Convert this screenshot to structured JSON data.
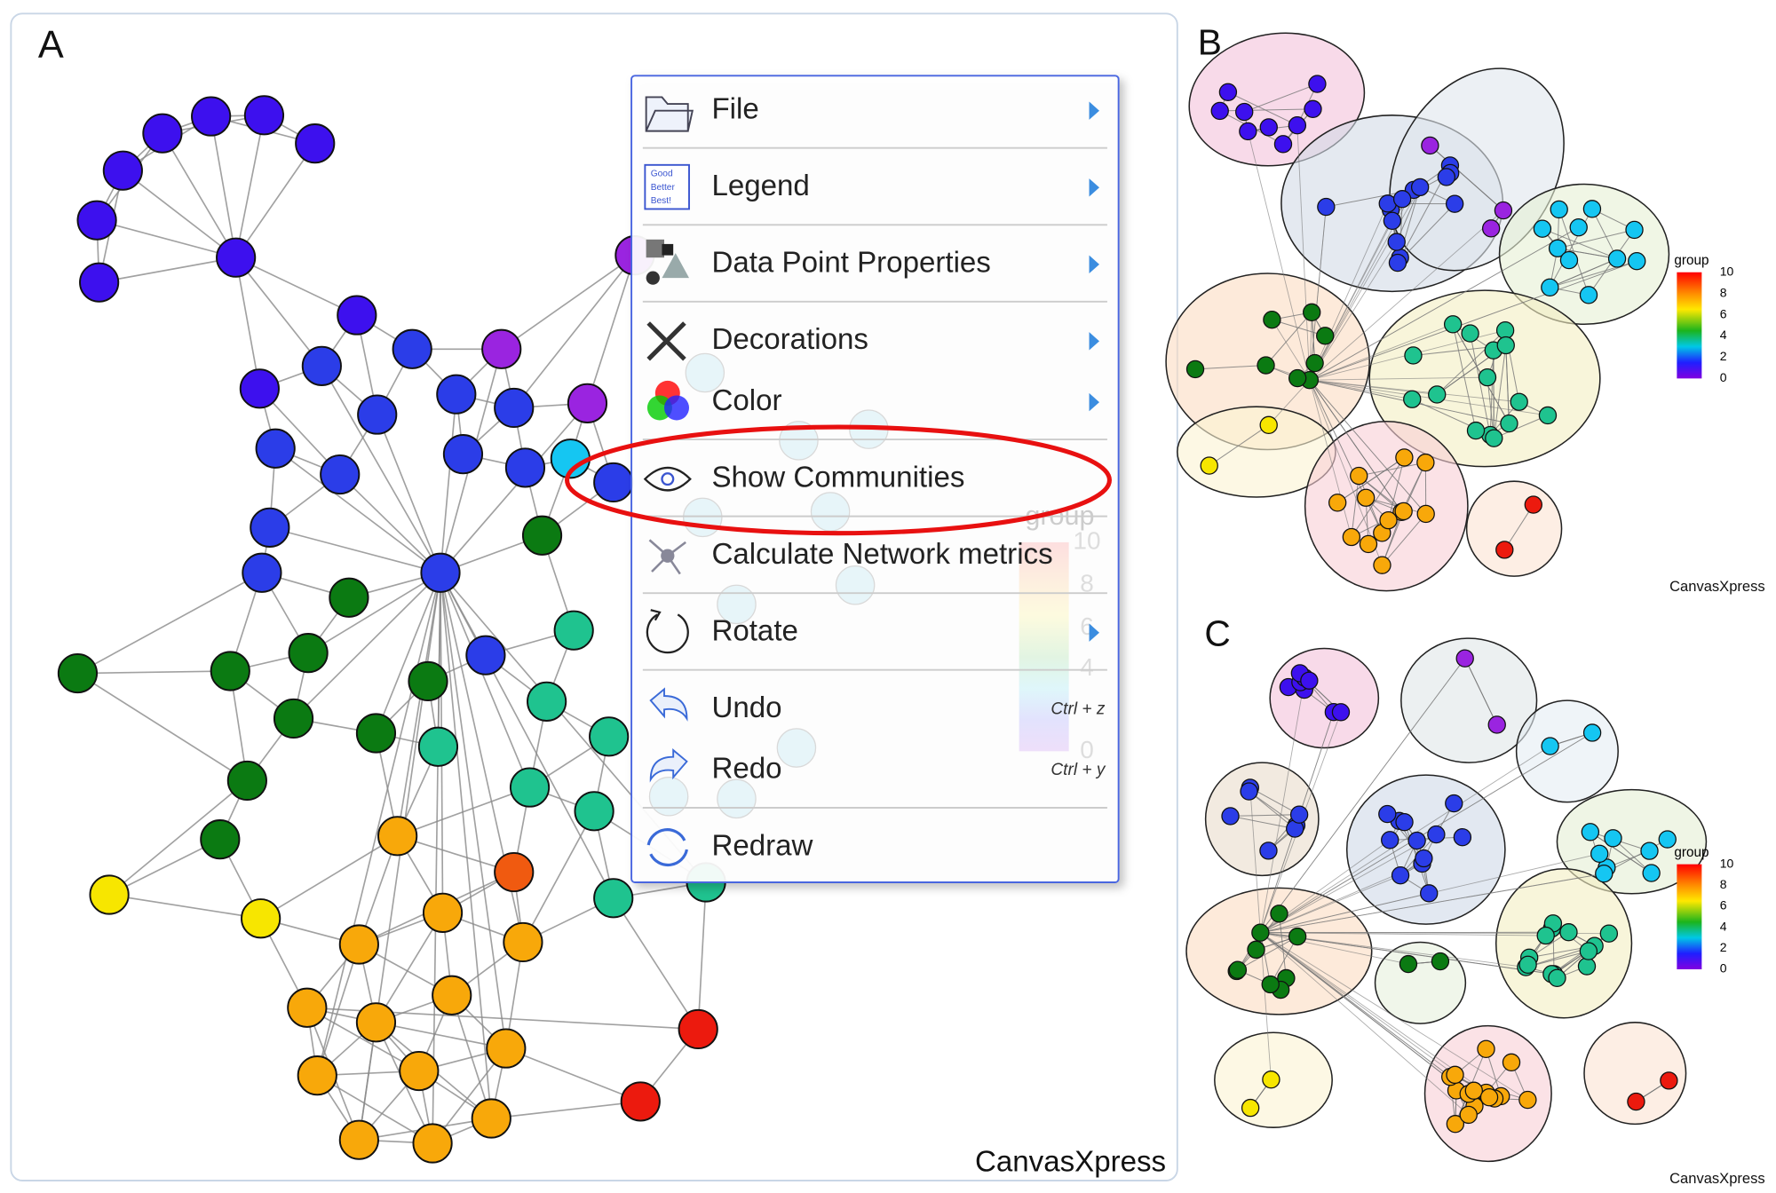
{
  "panel_labels": [
    "A",
    "B",
    "C"
  ],
  "menu": {
    "items": [
      {
        "label": "File",
        "submenu": true
      },
      {
        "label": "Legend",
        "submenu": true
      },
      {
        "label": "Data Point Properties",
        "submenu": true
      },
      {
        "label": "Decorations",
        "submenu": true
      },
      {
        "label": "Color",
        "submenu": true
      },
      {
        "label": "Show Communities",
        "submenu": false
      },
      {
        "label": "Calculate Network metrics",
        "submenu": false
      },
      {
        "label": "Rotate",
        "submenu": true
      },
      {
        "label": "Undo",
        "submenu": false,
        "shortcut": "Ctrl + z"
      },
      {
        "label": "Redo",
        "submenu": false,
        "shortcut": "Ctrl + y"
      },
      {
        "label": "Redraw",
        "submenu": false
      }
    ],
    "legend_icon_text": [
      "Good",
      "Better",
      "Best!"
    ]
  },
  "watermark": "CanvasXpress",
  "legend": {
    "title": "group",
    "ticks": [
      10,
      8,
      6,
      4,
      2,
      0
    ]
  },
  "faded_legend": {
    "title": "group",
    "ticks": [
      10,
      8,
      6,
      4,
      0
    ]
  }
}
